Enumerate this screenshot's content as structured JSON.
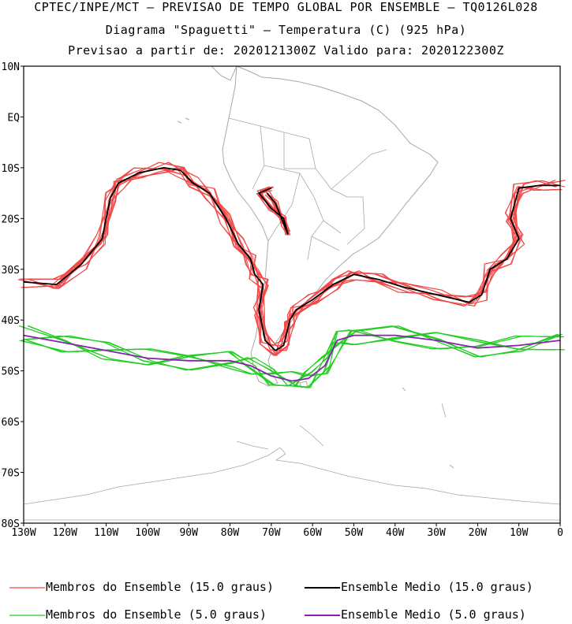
{
  "header": {
    "line1": "CPTEC/INPE/MCT – PREVISAO DE TEMPO GLOBAL POR ENSEMBLE – TQ0126L028",
    "line2": "Diagrama \"Spaguetti\" – Temperatura (C) (925 hPa)",
    "line3": "Previsao a partir de: 2020121300Z  Valido para: 2020122300Z"
  },
  "map": {
    "lon_range": [
      -130,
      0
    ],
    "lat_range": [
      -80,
      10
    ],
    "lat_ticks": [
      "10N",
      "EQ",
      "10S",
      "20S",
      "30S",
      "40S",
      "50S",
      "60S",
      "70S",
      "80S"
    ],
    "lon_ticks": [
      "130W",
      "120W",
      "110W",
      "100W",
      "90W",
      "80W",
      "70W",
      "60W",
      "50W",
      "40W",
      "30W",
      "20W",
      "10W",
      "0"
    ],
    "colors": {
      "members_15": "#f04848",
      "mean_15": "#000000",
      "members_5": "#22cc22",
      "mean_5": "#8a1fb0",
      "coast": "#a8a8a8"
    }
  },
  "legend": {
    "members_15": "Membros do Ensemble (15.0 graus)",
    "mean_15": "Ensemble Medio (15.0 graus)",
    "members_5": "Membros do Ensemble (5.0 graus)",
    "mean_5": "Ensemble Medio (5.0 graus)"
  }
}
